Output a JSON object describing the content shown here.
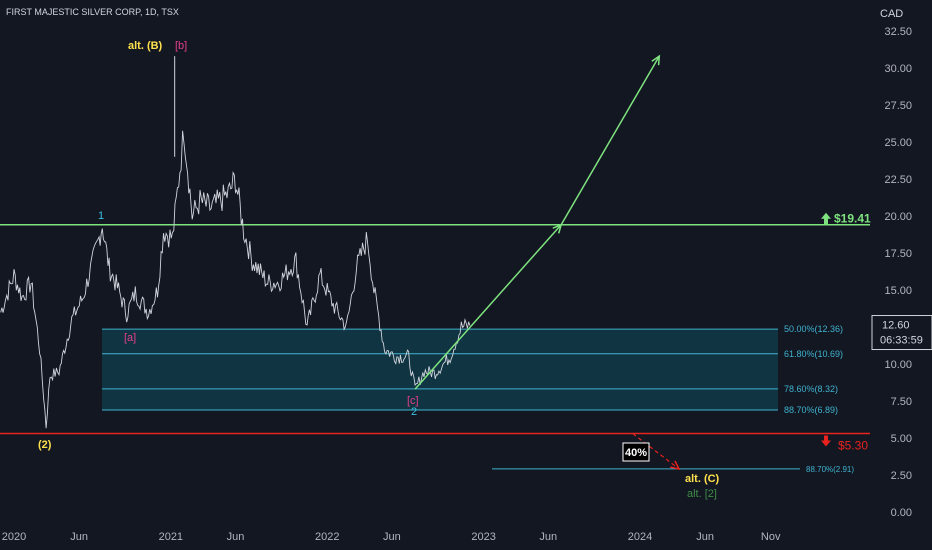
{
  "header": {
    "symbol_title": "FIRST MAJESTIC SILVER CORP, 1D, TSX",
    "currency": "CAD"
  },
  "price_axis": {
    "ticks": [
      "32.50",
      "30.00",
      "27.50",
      "25.00",
      "22.50",
      "20.00",
      "17.50",
      "15.00",
      "12.50",
      "10.00",
      "7.50",
      "5.00",
      "2.50",
      "0.00"
    ],
    "last_price": "12.60",
    "countdown": "06:33:59"
  },
  "time_axis": {
    "ticks": [
      "2020",
      "Jun",
      "2021",
      "Jun",
      "2022",
      "Jun",
      "2023",
      "Jun",
      "2024",
      "Jun",
      "Nov"
    ]
  },
  "colors": {
    "background": "#131722",
    "price_line": "#d1d4dc",
    "resistance": "#7ee37e",
    "support": "#e8231e",
    "fib_zone_fill": "#0f4c5c",
    "fib_line": "#3fb3cf",
    "wave_yellow": "#ffe14d",
    "wave_pink": "#e43f8a",
    "wave_cyan": "#38c0e0",
    "wave_green_dim": "#3f8a45"
  },
  "levels": {
    "resistance_label": "$19.41",
    "support_label": "$5.30",
    "probability_box": "40%"
  },
  "fib_labels": {
    "f50": "50.00%(12.36)",
    "f618": "61.80%(10.69)",
    "f786": "78.60%(8.32)",
    "f887": "88.70%(6.89)",
    "f887_low": "88.70%(2.91)"
  },
  "wave_labels": {
    "alt_b": "alt. (B)",
    "b_pink": "[b]",
    "one": "1",
    "a_pink": "[a]",
    "two_paren": "(2)",
    "c_pink": "[c]",
    "two_cyan": "2",
    "alt_c": "alt. (C)",
    "alt_2": "alt. [2]"
  },
  "chart_data": {
    "type": "line",
    "title": "FIRST MAJESTIC SILVER CORP, 1D, TSX",
    "ylabel": "CAD",
    "ylim": [
      0,
      34
    ],
    "x_range": [
      "2019-12-01",
      "2024-12-31"
    ],
    "grid": false,
    "series": [
      {
        "x": [
          "2019-12-01",
          "2020-01-01",
          "2020-01-20",
          "2020-02-10",
          "2020-03-01",
          "2020-03-16",
          "2020-03-25",
          "2020-04-15",
          "2020-05-15",
          "2020-06-10",
          "2020-07-15",
          "2020-07-25",
          "2020-08-10",
          "2020-09-01",
          "2020-09-20",
          "2020-10-10",
          "2020-11-10",
          "2020-12-01",
          "2020-12-15",
          "2021-01-05",
          "2021-01-25",
          "2021-02-01",
          "2021-02-20",
          "2021-03-10",
          "2021-04-05",
          "2021-05-15",
          "2021-06-01",
          "2021-06-20",
          "2021-07-10",
          "2021-08-15",
          "2021-09-10",
          "2021-10-20",
          "2021-11-15",
          "2021-12-15",
          "2022-01-15",
          "2022-02-15",
          "2022-03-10",
          "2022-04-05",
          "2022-04-20",
          "2022-05-15",
          "2022-06-10",
          "2022-07-10",
          "2022-07-25",
          "2022-08-15",
          "2022-09-10",
          "2022-10-15",
          "2022-11-10",
          "2022-11-30"
        ],
        "values": [
          13.5,
          16.0,
          14.5,
          15.5,
          11.0,
          5.8,
          9.2,
          9.5,
          13.0,
          14.5,
          18.2,
          19.4,
          16.5,
          15.0,
          13.4,
          14.8,
          13.5,
          15.0,
          19.0,
          18.5,
          24.0,
          25.8,
          20.0,
          21.0,
          20.5,
          21.5,
          22.5,
          19.0,
          17.0,
          15.5,
          15.5,
          17.0,
          12.5,
          16.0,
          14.0,
          12.5,
          16.5,
          18.5,
          15.0,
          11.0,
          10.5,
          10.5,
          8.3,
          9.5,
          9.4,
          10.5,
          12.5,
          12.6
        ]
      }
    ],
    "annotations": {
      "resistance": 19.41,
      "support": 5.3,
      "fib_zone": {
        "top": 12.36,
        "bottom": 6.89,
        "levels": [
          12.36,
          10.69,
          8.32,
          6.89
        ]
      },
      "fib_low": 2.91,
      "projection_up": {
        "from": [
          "2022-07-25",
          8.3
        ],
        "via": [
          "2023-07-01",
          19.41
        ],
        "to": [
          "2024-02-15",
          30.8
        ]
      },
      "projection_down": {
        "from": [
          "2023-12-15",
          5.3
        ],
        "to": [
          "2024-04-01",
          2.91
        ]
      },
      "alt_b_spike": {
        "x": "2021-01-10",
        "high": 30.8
      }
    }
  }
}
